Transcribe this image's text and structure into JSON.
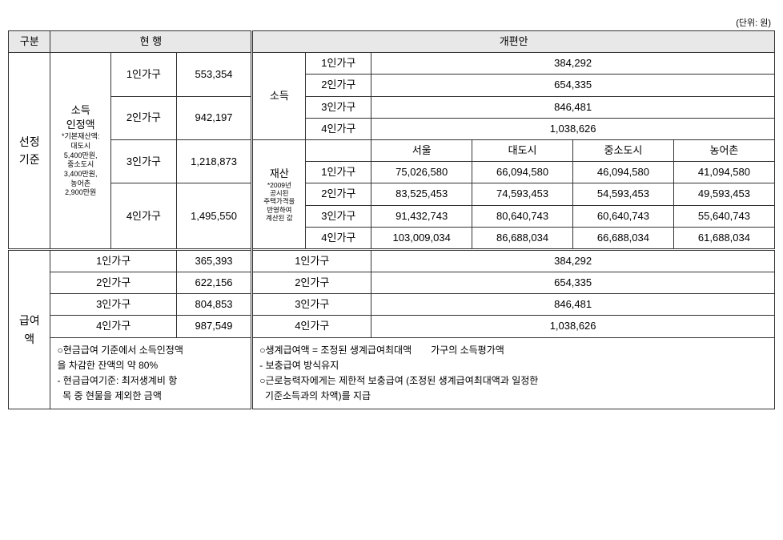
{
  "unit": "(단위: 원)",
  "headers": {
    "category": "구분",
    "current": "현 행",
    "proposed": "개편안"
  },
  "rowLabels": {
    "selection": "선정<br>기준",
    "benefit": "급여<br>액"
  },
  "sideLabels": {
    "incomeRec": "소득<br>인정액",
    "incomeRecNote": "*기본재산액:<br>대도시<br>5,400만원,<br>중소도시<br>3,400만원,<br>농어촌<br>2,900만원",
    "income": "소득",
    "asset": "재산",
    "assetNote": "*2009년<br>공시된<br>주택가격을<br>반영하여<br>계산된 값"
  },
  "householdLabels": {
    "h1": "1인가구",
    "h2": "2인가구",
    "h3": "3인가구",
    "h4": "4인가구"
  },
  "regions": {
    "seoul": "서울",
    "metro": "대도시",
    "small": "중소도시",
    "rural": "농어촌"
  },
  "current": {
    "selection": {
      "h1": "553,354",
      "h2": "942,197",
      "h3": "1,218,873",
      "h4": "1,495,550"
    },
    "benefit": {
      "h1": "365,393",
      "h2": "622,156",
      "h3": "804,853",
      "h4": "987,549"
    }
  },
  "proposed": {
    "income": {
      "h1": "384,292",
      "h2": "654,335",
      "h3": "846,481",
      "h4": "1,038,626"
    },
    "asset": {
      "h1": {
        "seoul": "75,026,580",
        "metro": "66,094,580",
        "small": "46,094,580",
        "rural": "41,094,580"
      },
      "h2": {
        "seoul": "83,525,453",
        "metro": "74,593,453",
        "small": "54,593,453",
        "rural": "49,593,453"
      },
      "h3": {
        "seoul": "91,432,743",
        "metro": "80,640,743",
        "small": "60,640,743",
        "rural": "55,640,743"
      },
      "h4": {
        "seoul": "103,009,034",
        "metro": "86,688,034",
        "small": "66,688,034",
        "rural": "61,688,034"
      }
    },
    "benefit": {
      "h1": "384,292",
      "h2": "654,335",
      "h3": "846,481",
      "h4": "1,038,626"
    }
  },
  "notes": {
    "current": "○현금급여 기준에서 소득인정액<br> 을 차감한 잔액의 약 80%<br> - 현금급여기준: 최저생계비 항<br>&nbsp;&nbsp;목 중 현물을 제외한 금액",
    "proposed": "○생계급여액 = 조정된 생계급여최대액　　가구의 소득평가액<br> - 보충급여 방식유지<br>○근로능력자에게는 제한적 보충급여 (조정된 생계급여최대액과 일정한<br>&nbsp;&nbsp;기준소득과의 차액)를 지급"
  }
}
